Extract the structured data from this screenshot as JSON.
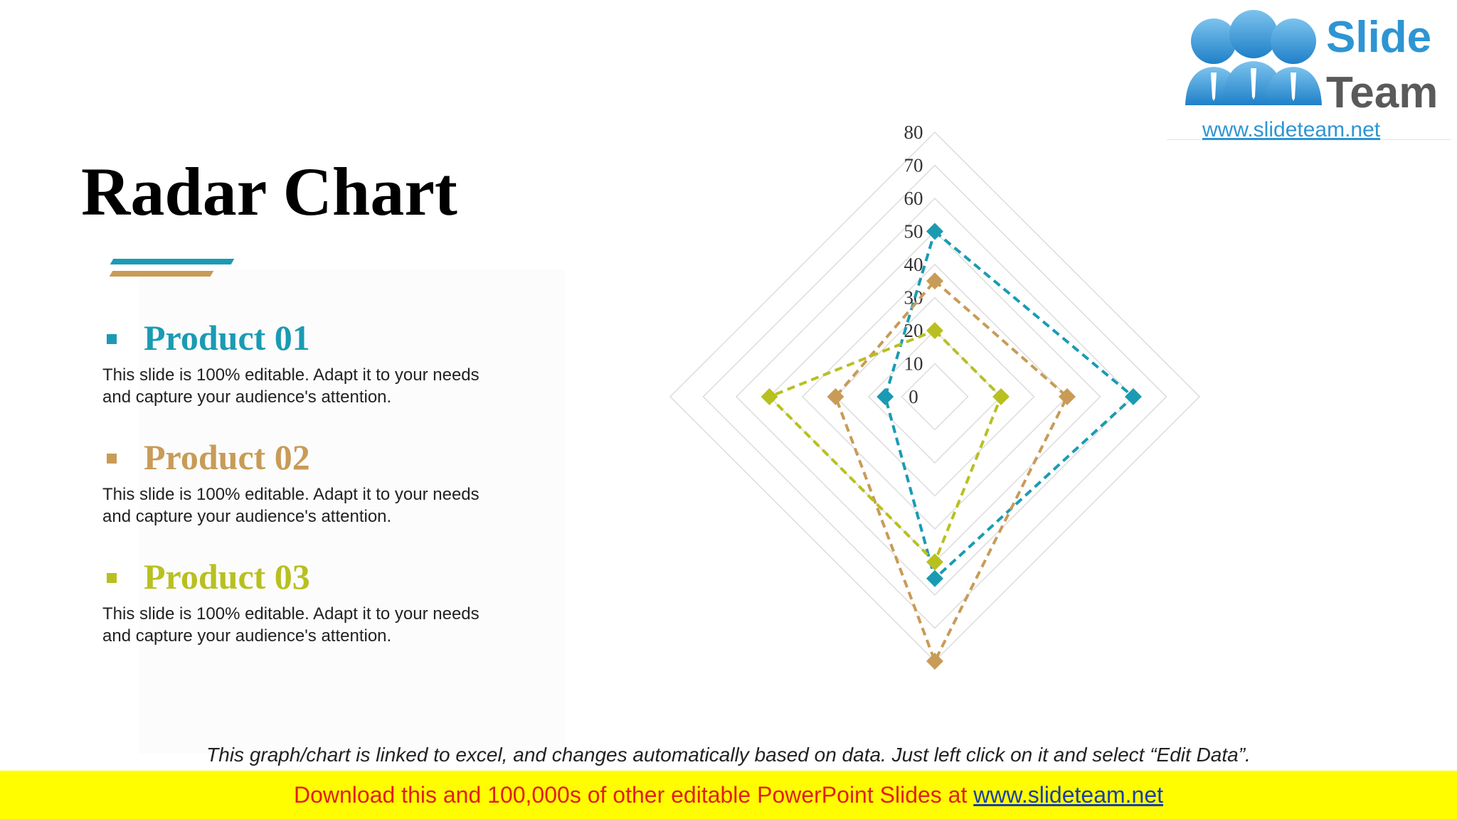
{
  "title": "Radar Chart",
  "products": [
    {
      "name": "Product 01",
      "color": "#1a9bb3",
      "desc_line1": "This slide is 100% editable. Adapt it to your needs",
      "desc_line2": "and capture your audience's attention."
    },
    {
      "name": "Product 02",
      "color": "#c89b57",
      "desc_line1": "This slide is 100% editable. Adapt it to your needs",
      "desc_line2": "and capture your audience's attention."
    },
    {
      "name": "Product 03",
      "color": "#b8c020",
      "desc_line1": "This slide is 100% editable. Adapt it to your needs",
      "desc_line2": "and capture your audience's attention."
    }
  ],
  "logo": {
    "word1": "Slide",
    "word2": "Team",
    "url": "www.slideteam.net"
  },
  "footnote": "This graph/chart is linked to excel, and changes automatically based on data. Just left click on it and select “Edit Data”.",
  "banner": {
    "text": "Download this and 100,000s of other editable PowerPoint Slides at ",
    "link": "www.slideteam.net"
  },
  "chart_data": {
    "type": "radar",
    "axes_count": 4,
    "ticks": [
      "0",
      "10",
      "20",
      "30",
      "40",
      "50",
      "60",
      "70",
      "80"
    ],
    "range": [
      0,
      80
    ],
    "grid": true,
    "series": [
      {
        "name": "Product 01",
        "color": "#1a9bb3",
        "values": [
          50,
          60,
          55,
          15
        ]
      },
      {
        "name": "Product 02",
        "color": "#c89b57",
        "values": [
          35,
          40,
          80,
          30
        ]
      },
      {
        "name": "Product 03",
        "color": "#b8c020",
        "values": [
          20,
          20,
          50,
          50
        ]
      }
    ]
  }
}
